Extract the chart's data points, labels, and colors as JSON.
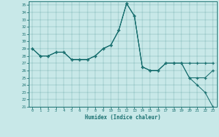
{
  "bg_color": "#c8e8e8",
  "line_color": "#1a7070",
  "xlabel": "Humidex (Indice chaleur)",
  "xlim": [
    -0.5,
    23.5
  ],
  "ylim": [
    21,
    35.5
  ],
  "yticks": [
    21,
    22,
    23,
    24,
    25,
    26,
    27,
    28,
    29,
    30,
    31,
    32,
    33,
    34,
    35
  ],
  "xticks": [
    0,
    1,
    2,
    3,
    4,
    5,
    6,
    7,
    8,
    9,
    10,
    11,
    12,
    13,
    14,
    15,
    16,
    17,
    18,
    19,
    20,
    21,
    22,
    23
  ],
  "line1_x": [
    0,
    1,
    2,
    3,
    4,
    5,
    6,
    7,
    8,
    9,
    10,
    11,
    12,
    13,
    14,
    15,
    16,
    17,
    18,
    19,
    20,
    21,
    22,
    23
  ],
  "line1_y": [
    29,
    28,
    28,
    28.5,
    28.5,
    27.5,
    27.5,
    27.5,
    28,
    29,
    29.5,
    31.5,
    35.2,
    33.5,
    26.5,
    26,
    26,
    27,
    27,
    27,
    25,
    24,
    23,
    21
  ],
  "line2_x": [
    0,
    1,
    2,
    3,
    4,
    5,
    6,
    7,
    8,
    9,
    10,
    11,
    12,
    13,
    14,
    15,
    16,
    17,
    18,
    19,
    20,
    21,
    22,
    23
  ],
  "line2_y": [
    29,
    28,
    28,
    28.5,
    28.5,
    27.5,
    27.5,
    27.5,
    28,
    29,
    29.5,
    31.5,
    35.2,
    33.5,
    26.5,
    26,
    26,
    27,
    27,
    27,
    27,
    27,
    27,
    27
  ],
  "line3_x": [
    0,
    1,
    2,
    3,
    4,
    5,
    6,
    7,
    8,
    9,
    10,
    11,
    12,
    13,
    14,
    15,
    16,
    17,
    18,
    19,
    20,
    21,
    22,
    23
  ],
  "line3_y": [
    29,
    28,
    28,
    28.5,
    28.5,
    27.5,
    27.5,
    27.5,
    28,
    29,
    29.5,
    31.5,
    35.2,
    33.5,
    26.5,
    26,
    26,
    27,
    27,
    27,
    25,
    25,
    25,
    26
  ]
}
